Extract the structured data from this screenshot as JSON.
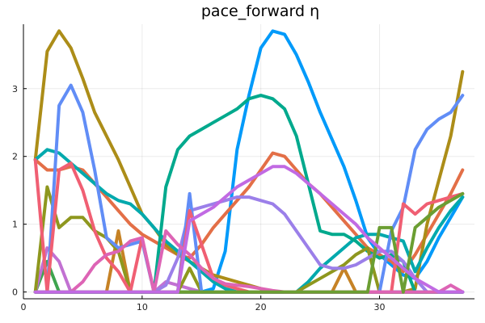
{
  "chart_data": {
    "type": "line",
    "title": "pace_forward η",
    "xlabel": "",
    "ylabel": "",
    "xlim": [
      0,
      38
    ],
    "ylim": [
      -0.1,
      3.95
    ],
    "xticks": [
      0,
      10,
      20,
      30
    ],
    "yticks": [
      0,
      1,
      2,
      3
    ],
    "grid": true,
    "legend": "none",
    "x": [
      1,
      2,
      3,
      4,
      5,
      6,
      7,
      8,
      9,
      10,
      11,
      12,
      13,
      14,
      15,
      16,
      17,
      18,
      19,
      20,
      21,
      22,
      23,
      24,
      25,
      26,
      27,
      28,
      29,
      30,
      31,
      32,
      33,
      34,
      35,
      36,
      37
    ],
    "series": [
      {
        "color": "#009AFA",
        "values": [
          0,
          0,
          0,
          0,
          0,
          0,
          0,
          0,
          0,
          0,
          0,
          0,
          0,
          0,
          0,
          0.05,
          0.6,
          2.1,
          2.9,
          3.6,
          3.85,
          3.8,
          3.5,
          3.1,
          2.65,
          2.25,
          1.85,
          1.35,
          0.8,
          0.55,
          0.4,
          0.25,
          0.2,
          0.45,
          0.8,
          1.1,
          1.4
        ]
      },
      {
        "color": "#E36F47",
        "values": [
          1.95,
          1.8,
          1.8,
          1.85,
          1.8,
          1.6,
          1.4,
          1.2,
          1.0,
          0.85,
          0.75,
          0.65,
          0.55,
          0.5,
          0.7,
          0.95,
          1.15,
          1.35,
          1.55,
          1.8,
          2.05,
          2.0,
          1.8,
          1.6,
          1.45,
          1.25,
          1.05,
          0.85,
          0.65,
          0.55,
          0.45,
          0.3,
          0.55,
          0.85,
          1.15,
          1.45,
          1.8
        ]
      },
      {
        "color": "#3EA44E",
        "values": [
          0,
          0.45,
          0,
          0,
          0,
          0,
          0,
          0,
          0,
          0,
          0,
          0,
          0,
          0,
          0,
          0,
          0,
          0,
          0,
          0,
          0,
          0,
          0,
          0,
          0,
          0,
          0,
          0,
          0,
          0,
          0,
          0,
          0,
          0,
          0,
          0,
          0
        ]
      },
      {
        "color": "#C271D2",
        "values": [
          0,
          0.65,
          0.45,
          0,
          0,
          0,
          0,
          0,
          0,
          0,
          0,
          0.15,
          0.1,
          0.05,
          0,
          0,
          0,
          0,
          0,
          0,
          0,
          0,
          0,
          0,
          0,
          0,
          0,
          0,
          0,
          0,
          0,
          0,
          0,
          0,
          0,
          0,
          0
        ]
      },
      {
        "color": "#AC8D18",
        "values": [
          1.95,
          3.55,
          3.85,
          3.6,
          3.15,
          2.65,
          2.3,
          1.95,
          1.55,
          1.15,
          0.95,
          0.7,
          0.55,
          0.45,
          0.35,
          0.25,
          0.2,
          0.15,
          0.1,
          0.05,
          0,
          0,
          0,
          0,
          0,
          0,
          0,
          0,
          0,
          0,
          0,
          0,
          0.05,
          1.0,
          1.65,
          2.3,
          3.25
        ]
      },
      {
        "color": "#00A9AD",
        "values": [
          1.95,
          2.1,
          2.05,
          1.9,
          1.75,
          1.6,
          1.45,
          1.35,
          1.3,
          1.15,
          0.95,
          0.75,
          0.6,
          0.45,
          0.3,
          0.15,
          0.05,
          0,
          0,
          0,
          0,
          0,
          0,
          0.15,
          0.35,
          0.5,
          0.65,
          0.8,
          0.85,
          0.85,
          0.8,
          0.75,
          0.3,
          0.65,
          0.95,
          1.2,
          1.4
        ]
      },
      {
        "color": "#ED5D92",
        "values": [
          0,
          0,
          0,
          0,
          0,
          0,
          0,
          0,
          0,
          0,
          0,
          0,
          0,
          0,
          0,
          0,
          0,
          0,
          0,
          0,
          0,
          0,
          0,
          0,
          0,
          0,
          0,
          0,
          0,
          0,
          0,
          0,
          0,
          0,
          0,
          0,
          0
        ]
      },
      {
        "color": "#C68225",
        "values": [
          0,
          0,
          0,
          0,
          0,
          0,
          0,
          0.9,
          0,
          0,
          0,
          0,
          0,
          0,
          0,
          0,
          0,
          0,
          0,
          0,
          0,
          0,
          0,
          0,
          0,
          0,
          0.35,
          0,
          0,
          0,
          0,
          0,
          0,
          0,
          0,
          0,
          0
        ]
      },
      {
        "color": "#00A98D",
        "values": [
          0,
          0,
          0,
          0,
          0,
          0,
          0,
          0,
          0,
          0,
          0,
          1.55,
          2.1,
          2.3,
          2.4,
          2.5,
          2.6,
          2.7,
          2.85,
          2.9,
          2.85,
          2.7,
          2.3,
          1.6,
          0.9,
          0.85,
          0.85,
          0.75,
          0.6,
          0.5,
          0.55,
          0.45,
          0,
          0,
          0,
          0,
          0
        ]
      },
      {
        "color": "#8E971E",
        "values": [
          0,
          1.55,
          0.95,
          1.1,
          1.1,
          0.9,
          0.8,
          0.6,
          0,
          0,
          0,
          0,
          0,
          0.35,
          0,
          0,
          0,
          0,
          0,
          0,
          0,
          0,
          0,
          0.1,
          0.2,
          0.3,
          0.4,
          0.55,
          0.65,
          0,
          0,
          0,
          0,
          0,
          0,
          0,
          0
        ]
      },
      {
        "color": "#00A8CB",
        "values": [
          0,
          0,
          0,
          0,
          0,
          0,
          0,
          0,
          0,
          0,
          0,
          0,
          0,
          0,
          0,
          0,
          0,
          0,
          0,
          0,
          0,
          0,
          0,
          0,
          0,
          0,
          0,
          0,
          0,
          0,
          0,
          0,
          0,
          0,
          0,
          0,
          0
        ]
      },
      {
        "color": "#9B7FE9",
        "values": [
          0,
          0,
          0,
          0,
          0,
          0,
          0,
          0,
          0,
          0,
          0,
          0.1,
          0.5,
          1.2,
          1.25,
          1.3,
          1.35,
          1.4,
          1.4,
          1.35,
          1.3,
          1.15,
          0.9,
          0.65,
          0.4,
          0.35,
          0.35,
          0.4,
          0.5,
          0.6,
          0.6,
          0.45,
          0.2,
          0,
          0,
          0,
          0
        ]
      },
      {
        "color": "#618DF6",
        "values": [
          0,
          0,
          2.75,
          3.05,
          2.65,
          1.8,
          0.8,
          0.65,
          0.7,
          0.75,
          0,
          0,
          0,
          1.45,
          0,
          0,
          0,
          0,
          0,
          0,
          0,
          0,
          0,
          0,
          0,
          0,
          0,
          0,
          0,
          0,
          0.9,
          1.25,
          2.1,
          2.4,
          2.55,
          2.65,
          2.9
        ]
      },
      {
        "color": "#F05F73",
        "values": [
          1.95,
          0,
          1.8,
          1.9,
          1.5,
          0.9,
          0.5,
          0.3,
          0,
          0.8,
          0,
          0,
          0,
          1.2,
          0.7,
          0.2,
          0.1,
          0.05,
          0,
          0,
          0,
          0,
          0,
          0,
          0,
          0,
          0,
          0,
          0,
          0,
          0,
          1.3,
          1.15,
          1.3,
          1.35,
          1.4,
          1.45
        ]
      },
      {
        "color": "#DD64B5",
        "values": [
          0,
          0,
          0,
          0,
          0.15,
          0.4,
          0.55,
          0.6,
          0.75,
          0.8,
          0,
          0.9,
          0.7,
          0.55,
          0.35,
          0.2,
          0.12,
          0.1,
          0.08,
          0.05,
          0.02,
          0,
          0,
          0,
          0,
          0,
          0,
          0,
          0,
          0,
          0,
          0,
          0,
          0,
          0,
          0.1,
          0
        ]
      },
      {
        "color": "#6B9E32",
        "values": [
          0,
          0,
          0,
          0,
          0,
          0,
          0,
          0,
          0,
          0,
          0,
          0,
          0,
          0,
          0,
          0,
          0,
          0,
          0,
          0,
          0,
          0,
          0,
          0,
          0,
          0,
          0,
          0,
          0,
          0.95,
          0.95,
          0,
          0.95,
          1.1,
          1.25,
          1.35,
          1.45
        ]
      },
      {
        "color": "#C16AE3",
        "values": [
          0,
          0,
          0,
          0,
          0,
          0,
          0,
          0,
          0,
          0,
          0,
          0,
          0,
          1.05,
          1.15,
          1.25,
          1.4,
          1.55,
          1.65,
          1.75,
          1.85,
          1.85,
          1.75,
          1.6,
          1.45,
          1.3,
          1.15,
          1.0,
          0.8,
          0.65,
          0.5,
          0.35,
          0.2,
          0.1,
          0,
          0,
          0
        ]
      }
    ]
  }
}
